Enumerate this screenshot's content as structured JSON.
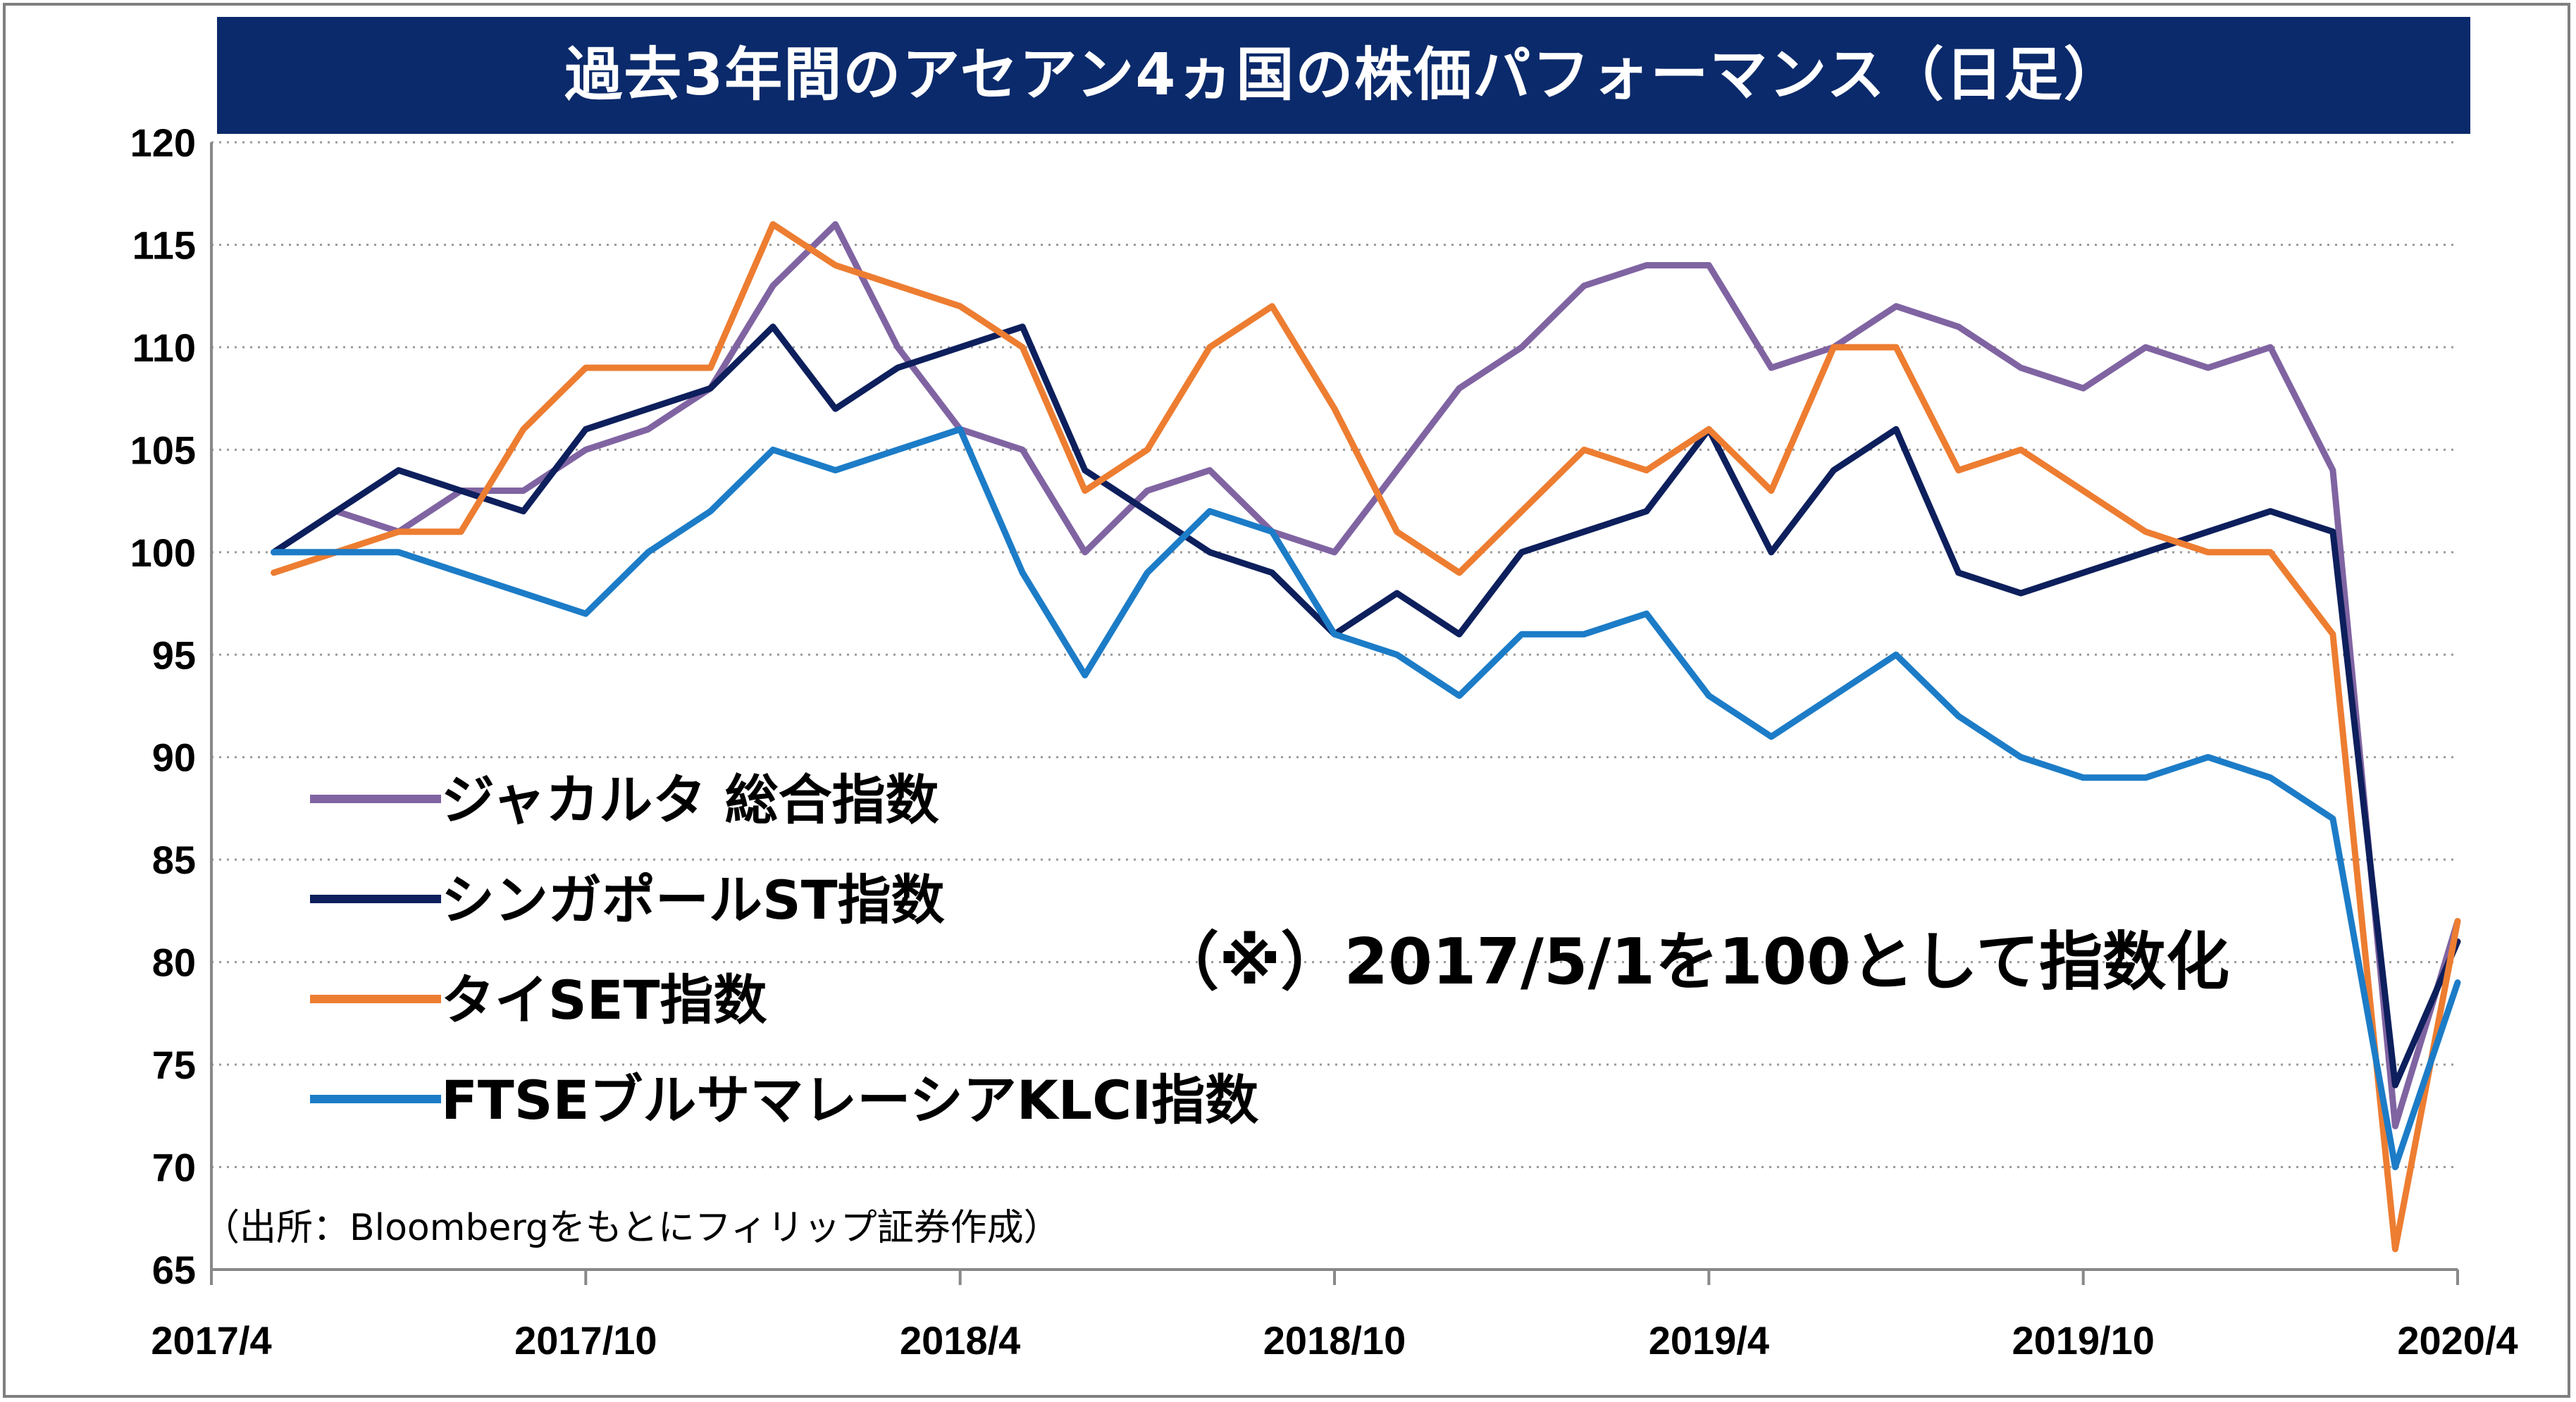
{
  "title": "過去3年間のアセアン4ヵ国の株価パフォーマンス（日足）",
  "note": "（※）2017/5/1を100として指数化",
  "source": "（出所：Bloombergをもとにフィリップ証券作成）",
  "chart_data": {
    "type": "line",
    "title": "過去3年間のアセアン4ヵ国の株価パフォーマンス（日足）",
    "xlabel": "",
    "ylabel": "",
    "ylim": [
      65,
      120
    ],
    "yticks": [
      65,
      70,
      75,
      80,
      85,
      90,
      95,
      100,
      105,
      110,
      115,
      120
    ],
    "x_tick_labels": [
      "2017/4",
      "2017/10",
      "2018/4",
      "2018/10",
      "2019/4",
      "2019/10",
      "2020/4"
    ],
    "x_tick_dates": [
      "2017-04",
      "2017-10",
      "2018-04",
      "2018-10",
      "2019-04",
      "2019-10",
      "2020-04"
    ],
    "grid": "horizontal dotted",
    "legend_position": "lower-left",
    "series": [
      {
        "name": "ジャカルタ 総合指数",
        "color": "#8064a2",
        "points": [
          [
            "2017-05",
            100
          ],
          [
            "2017-06",
            102
          ],
          [
            "2017-07",
            101
          ],
          [
            "2017-08",
            103
          ],
          [
            "2017-09",
            103
          ],
          [
            "2017-10",
            105
          ],
          [
            "2017-11",
            106
          ],
          [
            "2017-12",
            108
          ],
          [
            "2018-01",
            113
          ],
          [
            "2018-02",
            116
          ],
          [
            "2018-03",
            110
          ],
          [
            "2018-04",
            106
          ],
          [
            "2018-05",
            105
          ],
          [
            "2018-06",
            100
          ],
          [
            "2018-07",
            103
          ],
          [
            "2018-08",
            104
          ],
          [
            "2018-09",
            101
          ],
          [
            "2018-10",
            100
          ],
          [
            "2018-11",
            104
          ],
          [
            "2018-12",
            108
          ],
          [
            "2019-01",
            110
          ],
          [
            "2019-02",
            113
          ],
          [
            "2019-03",
            114
          ],
          [
            "2019-04",
            114
          ],
          [
            "2019-05",
            109
          ],
          [
            "2019-06",
            110
          ],
          [
            "2019-07",
            112
          ],
          [
            "2019-08",
            111
          ],
          [
            "2019-09",
            109
          ],
          [
            "2019-10",
            108
          ],
          [
            "2019-11",
            110
          ],
          [
            "2019-12",
            109
          ],
          [
            "2020-01",
            110
          ],
          [
            "2020-02",
            104
          ],
          [
            "2020-03",
            72
          ],
          [
            "2020-04",
            82
          ]
        ]
      },
      {
        "name": "シンガポールST指数",
        "color": "#0d1f5c",
        "points": [
          [
            "2017-05",
            100
          ],
          [
            "2017-06",
            102
          ],
          [
            "2017-07",
            104
          ],
          [
            "2017-08",
            103
          ],
          [
            "2017-09",
            102
          ],
          [
            "2017-10",
            106
          ],
          [
            "2017-11",
            107
          ],
          [
            "2017-12",
            108
          ],
          [
            "2018-01",
            111
          ],
          [
            "2018-02",
            107
          ],
          [
            "2018-03",
            109
          ],
          [
            "2018-04",
            110
          ],
          [
            "2018-05",
            111
          ],
          [
            "2018-06",
            104
          ],
          [
            "2018-07",
            102
          ],
          [
            "2018-08",
            100
          ],
          [
            "2018-09",
            99
          ],
          [
            "2018-10",
            96
          ],
          [
            "2018-11",
            98
          ],
          [
            "2018-12",
            96
          ],
          [
            "2019-01",
            100
          ],
          [
            "2019-02",
            101
          ],
          [
            "2019-03",
            102
          ],
          [
            "2019-04",
            106
          ],
          [
            "2019-05",
            100
          ],
          [
            "2019-06",
            104
          ],
          [
            "2019-07",
            106
          ],
          [
            "2019-08",
            99
          ],
          [
            "2019-09",
            98
          ],
          [
            "2019-10",
            99
          ],
          [
            "2019-11",
            100
          ],
          [
            "2019-12",
            101
          ],
          [
            "2020-01",
            102
          ],
          [
            "2020-02",
            101
          ],
          [
            "2020-03",
            74
          ],
          [
            "2020-04",
            81
          ]
        ]
      },
      {
        "name": "タイSET指数",
        "color": "#ed7d31",
        "points": [
          [
            "2017-05",
            99
          ],
          [
            "2017-06",
            100
          ],
          [
            "2017-07",
            101
          ],
          [
            "2017-08",
            101
          ],
          [
            "2017-09",
            106
          ],
          [
            "2017-10",
            109
          ],
          [
            "2017-11",
            109
          ],
          [
            "2017-12",
            109
          ],
          [
            "2018-01",
            116
          ],
          [
            "2018-02",
            114
          ],
          [
            "2018-03",
            113
          ],
          [
            "2018-04",
            112
          ],
          [
            "2018-05",
            110
          ],
          [
            "2018-06",
            103
          ],
          [
            "2018-07",
            105
          ],
          [
            "2018-08",
            110
          ],
          [
            "2018-09",
            112
          ],
          [
            "2018-10",
            107
          ],
          [
            "2018-11",
            101
          ],
          [
            "2018-12",
            99
          ],
          [
            "2019-01",
            102
          ],
          [
            "2019-02",
            105
          ],
          [
            "2019-03",
            104
          ],
          [
            "2019-04",
            106
          ],
          [
            "2019-05",
            103
          ],
          [
            "2019-06",
            110
          ],
          [
            "2019-07",
            110
          ],
          [
            "2019-08",
            104
          ],
          [
            "2019-09",
            105
          ],
          [
            "2019-10",
            103
          ],
          [
            "2019-11",
            101
          ],
          [
            "2019-12",
            100
          ],
          [
            "2020-01",
            100
          ],
          [
            "2020-02",
            96
          ],
          [
            "2020-03",
            66
          ],
          [
            "2020-04",
            82
          ]
        ]
      },
      {
        "name": "FTSEブルサマレーシアKLCI指数",
        "color": "#1c7cc7",
        "points": [
          [
            "2017-05",
            100
          ],
          [
            "2017-06",
            100
          ],
          [
            "2017-07",
            100
          ],
          [
            "2017-08",
            99
          ],
          [
            "2017-09",
            98
          ],
          [
            "2017-10",
            97
          ],
          [
            "2017-11",
            100
          ],
          [
            "2017-12",
            102
          ],
          [
            "2018-01",
            105
          ],
          [
            "2018-02",
            104
          ],
          [
            "2018-03",
            105
          ],
          [
            "2018-04",
            106
          ],
          [
            "2018-05",
            99
          ],
          [
            "2018-06",
            94
          ],
          [
            "2018-07",
            99
          ],
          [
            "2018-08",
            102
          ],
          [
            "2018-09",
            101
          ],
          [
            "2018-10",
            96
          ],
          [
            "2018-11",
            95
          ],
          [
            "2018-12",
            93
          ],
          [
            "2019-01",
            96
          ],
          [
            "2019-02",
            96
          ],
          [
            "2019-03",
            97
          ],
          [
            "2019-04",
            93
          ],
          [
            "2019-05",
            91
          ],
          [
            "2019-06",
            93
          ],
          [
            "2019-07",
            95
          ],
          [
            "2019-08",
            92
          ],
          [
            "2019-09",
            90
          ],
          [
            "2019-10",
            89
          ],
          [
            "2019-11",
            89
          ],
          [
            "2019-12",
            90
          ],
          [
            "2020-01",
            89
          ],
          [
            "2020-02",
            87
          ],
          [
            "2020-03",
            70
          ],
          [
            "2020-04",
            79
          ]
        ]
      }
    ]
  },
  "colors": {
    "title_background": "#0b2a6b",
    "title_text": "#ffffff",
    "grid": "#9a9a9a",
    "axis": "#888888"
  }
}
